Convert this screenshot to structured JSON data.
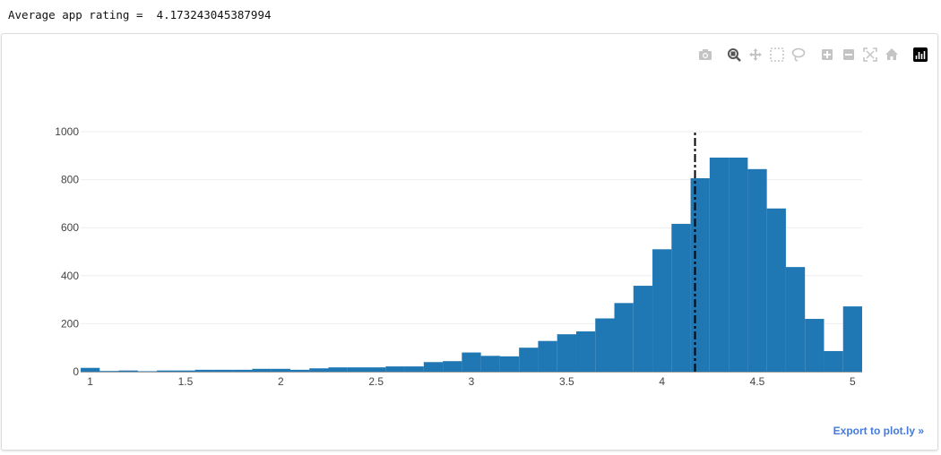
{
  "output": {
    "label": "Average app rating =",
    "value": "4.173243045387994"
  },
  "modebar": {
    "buttons": [
      {
        "name": "camera-icon"
      },
      {
        "name": "zoom-icon"
      },
      {
        "name": "pan-icon"
      },
      {
        "name": "box-select-icon"
      },
      {
        "name": "lasso-select-icon"
      },
      {
        "name": "zoom-in-icon"
      },
      {
        "name": "zoom-out-icon"
      },
      {
        "name": "autoscale-icon"
      },
      {
        "name": "reset-axes-icon"
      },
      {
        "name": "plotly-logo-icon"
      }
    ]
  },
  "export_link": "Export to plot.ly »",
  "colors": {
    "bar": "#1f77b4",
    "mean_line": "#000000",
    "grid": "#eeeeee",
    "axis_text": "#444444",
    "link": "#447adb"
  },
  "chart_data": {
    "type": "bar",
    "title": "",
    "xlabel": "",
    "ylabel": "",
    "bin_width": 0.1,
    "bin_starts": [
      0.95,
      1.05,
      1.15,
      1.25,
      1.35,
      1.45,
      1.55,
      1.65,
      1.75,
      1.85,
      1.95,
      2.05,
      2.15,
      2.25,
      2.35,
      2.45,
      2.55,
      2.65,
      2.75,
      2.85,
      2.95,
      3.05,
      3.15,
      3.25,
      3.35,
      3.45,
      3.55,
      3.65,
      3.75,
      3.85,
      3.95,
      4.05,
      4.15,
      4.25,
      4.35,
      4.45,
      4.55,
      4.65,
      4.75,
      4.85,
      4.95
    ],
    "values": [
      16,
      3,
      5,
      2,
      5,
      5,
      8,
      8,
      8,
      12,
      12,
      8,
      14,
      18,
      18,
      18,
      22,
      22,
      40,
      44,
      80,
      66,
      64,
      100,
      128,
      156,
      168,
      222,
      286,
      358,
      510,
      616,
      806,
      892,
      892,
      844,
      680,
      436,
      220,
      86,
      272
    ],
    "xlim": [
      0.95,
      5.05
    ],
    "ylim": [
      0,
      1000
    ],
    "xticks": [
      1,
      1.5,
      2,
      2.5,
      3,
      3.5,
      4,
      4.5,
      5
    ],
    "xtick_labels": [
      "1",
      "1.5",
      "2",
      "2.5",
      "3",
      "3.5",
      "4",
      "4.5",
      "5"
    ],
    "yticks": [
      0,
      200,
      400,
      600,
      800,
      1000
    ],
    "ytick_labels": [
      "0",
      "200",
      "400",
      "600",
      "800",
      "1000"
    ],
    "mean_line": {
      "x": 4.173243045387994,
      "y_top": 1000,
      "style": "dashdot"
    },
    "grid": true,
    "legend": "none"
  }
}
